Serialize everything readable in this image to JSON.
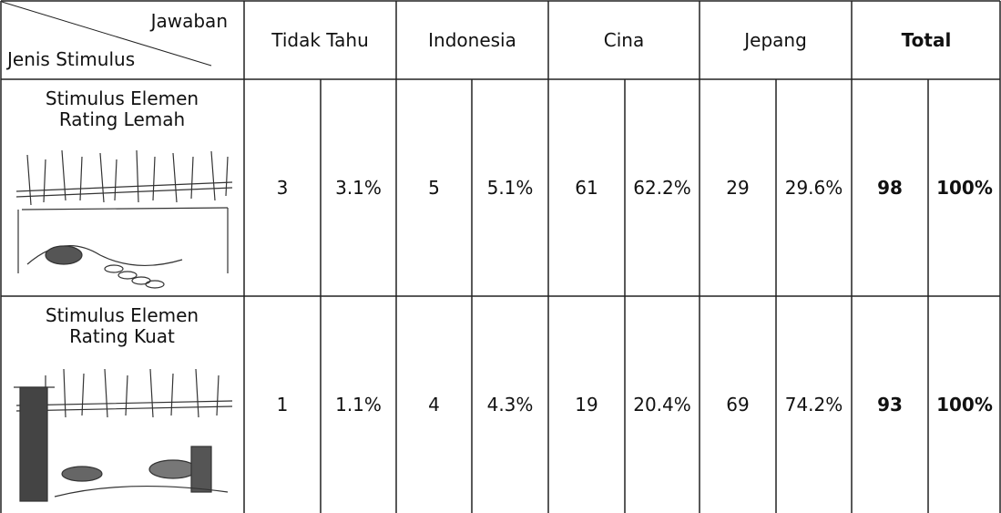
{
  "header": {
    "corner_top": "Jawaban",
    "corner_bottom": "Jenis Stimulus",
    "columns": [
      "Tidak Tahu",
      "Indonesia",
      "Cina",
      "Jepang",
      "Total"
    ]
  },
  "rows": [
    {
      "label": "Stimulus Elemen Rating Lemah",
      "cells": [
        "3",
        "3.1%",
        "5",
        "5.1%",
        "61",
        "62.2%",
        "29",
        "29.6%",
        "98",
        "100%"
      ]
    },
    {
      "label": "Stimulus Elemen Rating Kuat",
      "cells": [
        "1",
        "1.1%",
        "4",
        "4.3%",
        "19",
        "20.4%",
        "69",
        "74.2%",
        "93",
        "100%"
      ]
    }
  ]
}
